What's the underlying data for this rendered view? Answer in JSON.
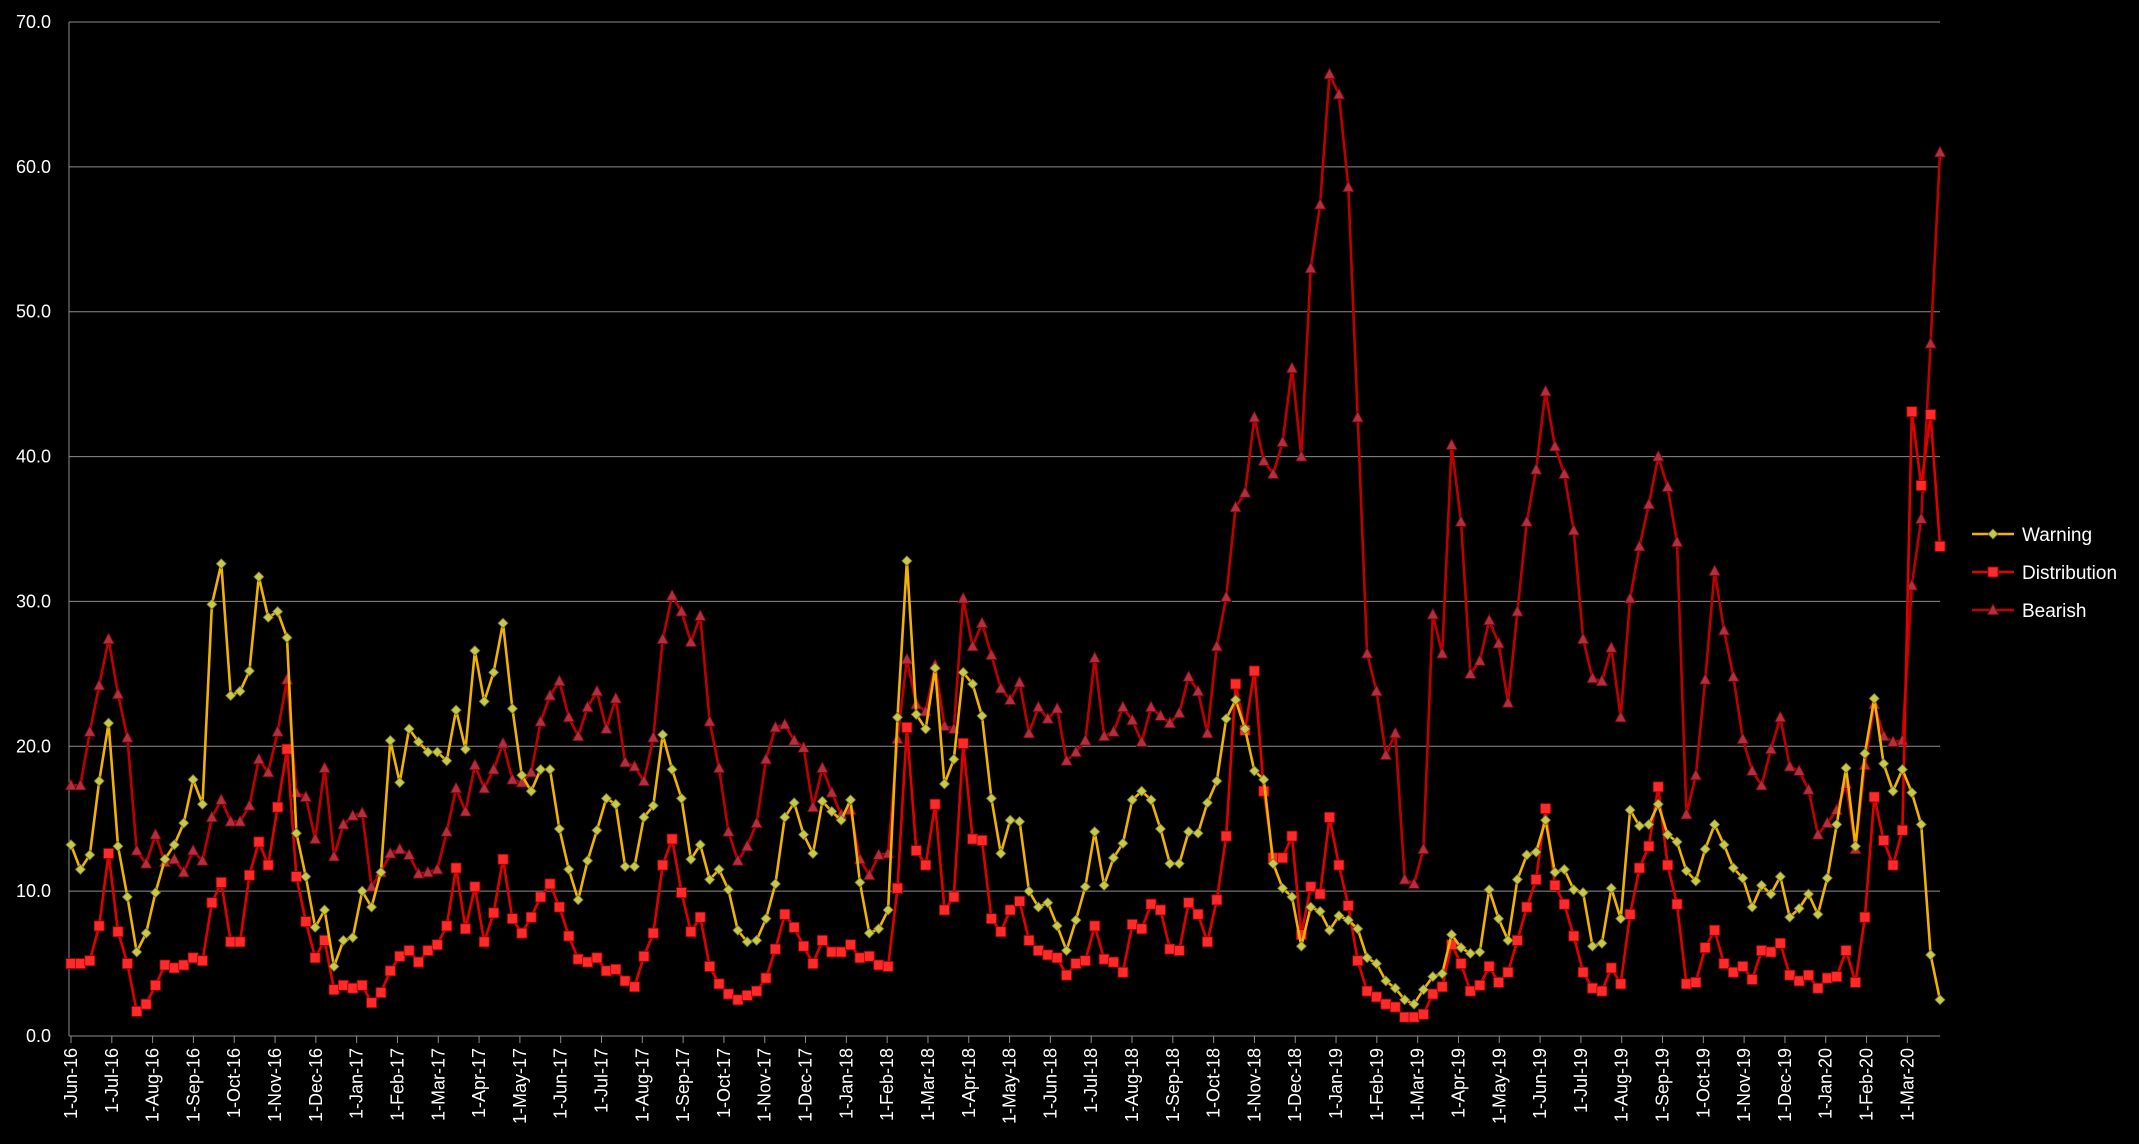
{
  "chart_data": {
    "type": "line",
    "title": "",
    "xlabel": "",
    "ylabel": "",
    "ylim": [
      0,
      70
    ],
    "yticks": [
      "0.0",
      "10.0",
      "20.0",
      "30.0",
      "40.0",
      "50.0",
      "60.0",
      "70.0"
    ],
    "grid": true,
    "legend_position": "right",
    "x_tick_labels": [
      "1-Jun-16",
      "1-Jul-16",
      "1-Aug-16",
      "1-Sep-16",
      "1-Oct-16",
      "1-Nov-16",
      "1-Dec-16",
      "1-Jan-17",
      "1-Feb-17",
      "1-Mar-17",
      "1-Apr-17",
      "1-May-17",
      "1-Jun-17",
      "1-Jul-17",
      "1-Aug-17",
      "1-Sep-17",
      "1-Oct-17",
      "1-Nov-17",
      "1-Dec-17",
      "1-Jan-18",
      "1-Feb-18",
      "1-Mar-18",
      "1-Apr-18",
      "1-May-18",
      "1-Jun-18",
      "1-Jul-18",
      "1-Aug-18",
      "1-Sep-18",
      "1-Oct-18",
      "1-Nov-18",
      "1-Dec-18",
      "1-Jan-19",
      "1-Feb-19",
      "1-Mar-19",
      "1-Apr-19",
      "1-May-19",
      "1-Jun-19",
      "1-Jul-19",
      "1-Aug-19",
      "1-Sep-19",
      "1-Oct-19",
      "1-Nov-19",
      "1-Dec-19",
      "1-Jan-20",
      "1-Feb-20",
      "1-Mar-20"
    ],
    "series": [
      {
        "name": "Warning",
        "color": "#f0b400",
        "marker_color": "#c8c84a",
        "marker": "diamond",
        "values": [
          13.2,
          11.5,
          12.5,
          17.6,
          21.6,
          13.1,
          9.6,
          5.8,
          7.1,
          9.9,
          12.2,
          13.2,
          14.7,
          17.7,
          16.0,
          29.8,
          32.6,
          23.5,
          23.8,
          25.2,
          31.7,
          28.9,
          29.3,
          27.5,
          14.0,
          11.0,
          7.5,
          8.7,
          4.8,
          6.6,
          6.8,
          10.0,
          8.9,
          11.3,
          20.4,
          17.5,
          21.2,
          20.3,
          19.6,
          19.6,
          19.0,
          22.5,
          19.8,
          26.6,
          23.1,
          25.1,
          28.5,
          22.6,
          18.0,
          16.9,
          18.4,
          18.4,
          14.3,
          11.5,
          9.4,
          12.1,
          14.2,
          16.4,
          16.0,
          11.7,
          11.7,
          15.1,
          15.9,
          20.8,
          18.4,
          16.4,
          12.2,
          13.2,
          10.8,
          11.5,
          10.1,
          7.3,
          6.5,
          6.6,
          8.1,
          10.5,
          15.1,
          16.1,
          13.9,
          12.6,
          16.2,
          15.5,
          14.9,
          16.3,
          10.6,
          7.1,
          7.4,
          8.7,
          22.0,
          32.8,
          22.2,
          21.2,
          25.4,
          17.4,
          19.1,
          25.1,
          24.3,
          22.1,
          16.4,
          12.6,
          14.9,
          14.8,
          10.0,
          8.9,
          9.2,
          7.6,
          5.9,
          8.0,
          10.3,
          14.1,
          10.4,
          12.3,
          13.3,
          16.3,
          16.9,
          16.3,
          14.3,
          11.9,
          11.9,
          14.1,
          14.0,
          16.1,
          17.6,
          21.9,
          23.2,
          21.2,
          18.3,
          17.7,
          11.9,
          10.2,
          9.6,
          6.2,
          8.9,
          8.6,
          7.3,
          8.3,
          8.0,
          7.4,
          5.4,
          5.0,
          3.8,
          3.3,
          2.5,
          2.2,
          3.2,
          4.1,
          4.3,
          7.0,
          6.1,
          5.7,
          5.8,
          10.1,
          8.1,
          6.6,
          10.8,
          12.5,
          12.7,
          14.9,
          11.3,
          11.5,
          10.1,
          9.9,
          6.2,
          6.4,
          10.2,
          8.1,
          15.6,
          14.5,
          14.6,
          16.0,
          13.9,
          13.4,
          11.4,
          10.7,
          12.9,
          14.6,
          13.2,
          11.6,
          10.9,
          8.9,
          10.4,
          9.8,
          11.0,
          8.2,
          8.8,
          9.8,
          8.4,
          10.9,
          14.6,
          18.5,
          13.1,
          19.5,
          23.3,
          18.8,
          16.9,
          18.4,
          16.8,
          14.6,
          5.6,
          2.5
        ]
      },
      {
        "name": "Distribution",
        "color": "#e00000",
        "marker_color": "#ff2a2a",
        "marker": "square",
        "values": [
          5.0,
          5.0,
          5.2,
          7.6,
          12.6,
          7.2,
          5.0,
          1.7,
          2.2,
          3.5,
          4.9,
          4.7,
          4.9,
          5.4,
          5.2,
          9.2,
          10.6,
          6.5,
          6.5,
          11.1,
          13.4,
          11.8,
          15.8,
          19.8,
          11.0,
          7.9,
          5.4,
          6.6,
          3.2,
          3.5,
          3.3,
          3.5,
          2.3,
          3.0,
          4.5,
          5.5,
          5.9,
          5.1,
          5.9,
          6.3,
          7.6,
          11.6,
          7.4,
          10.3,
          6.5,
          8.5,
          12.2,
          8.1,
          7.1,
          8.2,
          9.6,
          10.5,
          8.9,
          6.9,
          5.3,
          5.1,
          5.4,
          4.5,
          4.6,
          3.8,
          3.4,
          5.5,
          7.1,
          11.8,
          13.6,
          9.9,
          7.2,
          8.2,
          4.8,
          3.6,
          2.9,
          2.5,
          2.8,
          3.1,
          4.0,
          6.0,
          8.4,
          7.5,
          6.2,
          5.0,
          6.6,
          5.8,
          5.8,
          6.3,
          5.4,
          5.5,
          4.9,
          4.8,
          10.2,
          21.3,
          12.8,
          11.8,
          16.0,
          8.7,
          9.6,
          20.2,
          13.6,
          13.5,
          8.1,
          7.2,
          8.7,
          9.3,
          6.6,
          5.9,
          5.6,
          5.4,
          4.2,
          5.0,
          5.2,
          7.6,
          5.3,
          5.1,
          4.4,
          7.7,
          7.4,
          9.1,
          8.7,
          6.0,
          5.9,
          9.2,
          8.4,
          6.5,
          9.4,
          13.8,
          24.3,
          21.1,
          25.2,
          16.9,
          12.3,
          12.3,
          13.8,
          7.0,
          10.3,
          9.8,
          15.1,
          11.8,
          9.0,
          5.2,
          3.1,
          2.7,
          2.2,
          2.0,
          1.3,
          1.3,
          1.5,
          2.9,
          3.4,
          6.3,
          5.0,
          3.1,
          3.5,
          4.8,
          3.7,
          4.4,
          6.6,
          8.9,
          10.8,
          15.7,
          10.4,
          9.1,
          6.9,
          4.4,
          3.3,
          3.1,
          4.7,
          3.6,
          8.4,
          11.6,
          13.1,
          17.2,
          11.8,
          9.1,
          3.6,
          3.7,
          6.1,
          7.3,
          5.0,
          4.4,
          4.8,
          3.9,
          5.9,
          5.8,
          6.4,
          4.2,
          3.8,
          4.2,
          3.3,
          4.0,
          4.1,
          5.9,
          3.7,
          8.2,
          16.5,
          13.5,
          11.8,
          14.2,
          43.1,
          38.0,
          42.9,
          33.8
        ]
      },
      {
        "name": "Bearish",
        "color": "#c00000",
        "marker_color": "#b03040",
        "marker": "triangle",
        "values": [
          17.3,
          17.3,
          21.0,
          24.2,
          27.4,
          23.6,
          20.6,
          12.8,
          11.9,
          13.9,
          12.0,
          12.2,
          11.3,
          12.8,
          12.1,
          15.1,
          16.3,
          14.8,
          14.8,
          15.9,
          19.1,
          18.2,
          21.0,
          24.6,
          16.8,
          16.5,
          13.6,
          18.5,
          12.4,
          14.6,
          15.2,
          15.4,
          10.3,
          11.3,
          12.6,
          12.9,
          12.5,
          11.2,
          11.3,
          11.5,
          14.1,
          17.1,
          15.5,
          18.7,
          17.1,
          18.4,
          20.2,
          17.7,
          17.5,
          18.2,
          21.7,
          23.5,
          24.5,
          22.0,
          20.7,
          22.7,
          23.8,
          21.2,
          23.3,
          18.9,
          18.6,
          17.6,
          20.6,
          27.4,
          30.4,
          29.3,
          27.2,
          29.0,
          21.7,
          18.5,
          14.1,
          12.1,
          13.1,
          14.7,
          19.1,
          21.3,
          21.5,
          20.4,
          19.9,
          15.8,
          18.5,
          16.8,
          15.3,
          15.6,
          12.2,
          11.1,
          12.5,
          12.6,
          20.5,
          26.0,
          22.9,
          22.4,
          25.6,
          21.4,
          21.2,
          30.2,
          26.9,
          28.5,
          26.3,
          24.0,
          23.2,
          24.4,
          20.9,
          22.7,
          21.9,
          22.6,
          19.0,
          19.6,
          20.4,
          26.1,
          20.7,
          21.0,
          22.7,
          21.8,
          20.3,
          22.7,
          22.1,
          21.6,
          22.3,
          24.8,
          23.8,
          20.9,
          26.9,
          30.3,
          36.5,
          37.5,
          42.7,
          39.7,
          38.8,
          41.0,
          46.1,
          40.0,
          53.0,
          57.4,
          66.4,
          65.0,
          58.6,
          42.7,
          26.4,
          23.8,
          19.4,
          20.9,
          10.8,
          10.5,
          12.9,
          29.1,
          26.4,
          40.8,
          35.5,
          25.0,
          25.9,
          28.7,
          27.1,
          23.0,
          29.3,
          35.5,
          39.1,
          44.5,
          40.7,
          38.8,
          34.9,
          27.4,
          24.7,
          24.5,
          26.8,
          22.0,
          30.2,
          33.8,
          36.7,
          40.0,
          37.9,
          34.1,
          15.3,
          18.0,
          24.6,
          32.1,
          28.0,
          24.8,
          20.5,
          18.3,
          17.3,
          19.8,
          22.0,
          18.6,
          18.3,
          17.0,
          13.9,
          14.7,
          15.6,
          17.4,
          12.9,
          18.7,
          22.9,
          20.7,
          20.3,
          20.4,
          31.1,
          35.7,
          47.8,
          61.0
        ]
      }
    ]
  }
}
